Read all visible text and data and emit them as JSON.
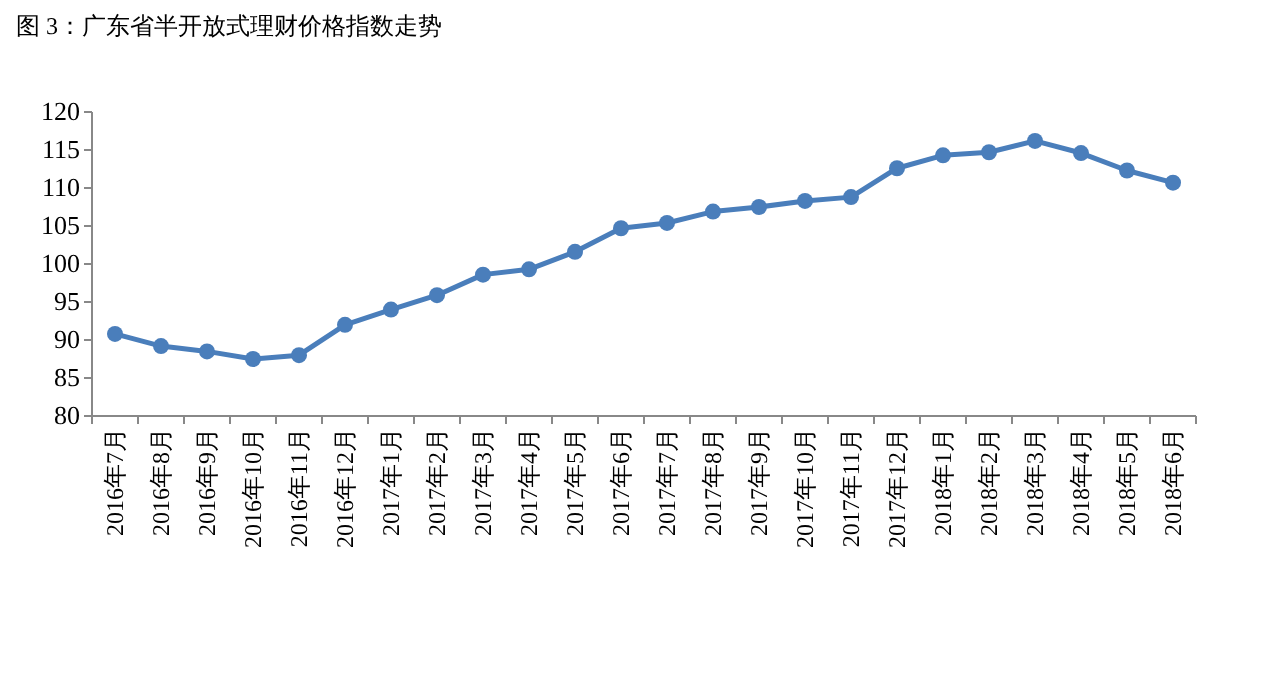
{
  "chart_data": {
    "type": "line",
    "title": "图 3：广东省半开放式理财价格指数走势",
    "categories": [
      "2016年7月",
      "2016年8月",
      "2016年9月",
      "2016年10月",
      "2016年11月",
      "2016年12月",
      "2017年1月",
      "2017年2月",
      "2017年3月",
      "2017年4月",
      "2017年5月",
      "2017年6月",
      "2017年7月",
      "2017年8月",
      "2017年9月",
      "2017年10月",
      "2017年11月",
      "2017年12月",
      "2018年1月",
      "2018年2月",
      "2018年3月",
      "2018年4月",
      "2018年5月",
      "2018年6月"
    ],
    "series": [
      {
        "color": "#4a7ebb",
        "values": [
          90.8,
          89.2,
          88.5,
          87.5,
          88.0,
          92.0,
          94.0,
          95.9,
          98.6,
          99.3,
          101.6,
          104.7,
          105.4,
          106.9,
          107.5,
          108.3,
          108.8,
          112.6,
          114.3,
          114.7,
          116.2,
          114.6,
          112.3,
          110.7
        ]
      }
    ],
    "ylim": [
      80,
      120
    ],
    "yticks": [
      80,
      85,
      90,
      95,
      100,
      105,
      110,
      115,
      120
    ],
    "marker": "circle",
    "grid": false
  }
}
